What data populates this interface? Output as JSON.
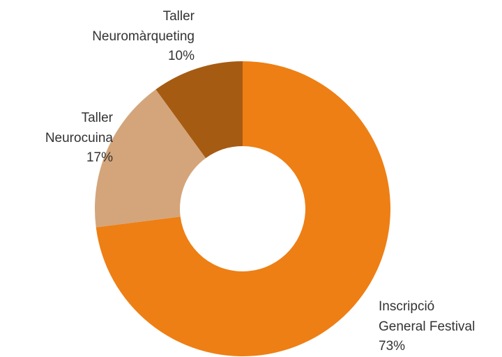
{
  "chart_data": {
    "type": "donut",
    "categories": [
      "Inscripció\nGeneral Festival",
      "Taller\nNeurocuina",
      "Taller\nNeuromàrqueting"
    ],
    "values": [
      73,
      17,
      10
    ],
    "value_labels": [
      "73%",
      "17%",
      "10%"
    ],
    "colors": [
      "#ee7f14",
      "#d4a57a",
      "#a65b13"
    ]
  }
}
